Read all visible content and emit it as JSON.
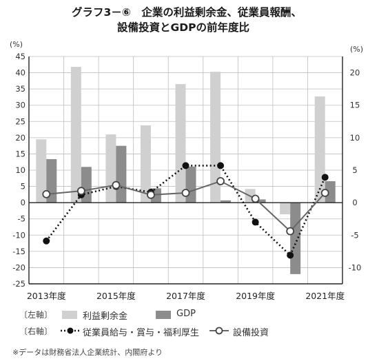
{
  "chart_data": {
    "type": "bar",
    "title": "グラフ3－⑥　企業の利益剰余金、従業員報酬、設備投資とGDPの前年度比",
    "title_line1": "グラフ3－⑥　企業の利益剰余金、従業員報酬、",
    "title_line2": "設備投資とGDPの前年度比",
    "left_axis_unit": "(%)",
    "right_axis_unit": "(%)",
    "left_ylim": [
      -25,
      45
    ],
    "right_ylim": [
      -12.5,
      22.5
    ],
    "left_ticks": [
      45,
      40,
      35,
      30,
      25,
      20,
      15,
      10,
      5,
      0,
      -5,
      -10,
      -15,
      -20,
      -25
    ],
    "right_ticks": [
      20,
      15,
      10,
      5,
      0,
      -5,
      -10
    ],
    "x_years": [
      2013,
      2014,
      2015,
      2016,
      2017,
      2018,
      2019,
      2020,
      2021
    ],
    "x_tick_labels": [
      "2013年度",
      "2015年度",
      "2017年度",
      "2019年度",
      "2021年度"
    ],
    "series": [
      {
        "name": "利益剰余金",
        "axis": "left",
        "kind": "bar",
        "color": "#d0d0d0",
        "values": [
          19.5,
          41.8,
          21.0,
          23.8,
          36.5,
          40.3,
          4.2,
          -3.6,
          32.7
        ]
      },
      {
        "name": "GDP",
        "axis": "left",
        "kind": "bar",
        "color": "#8c8c8c",
        "values": [
          13.4,
          11.0,
          17.5,
          4.4,
          11.1,
          0.7,
          1.0,
          -22.0,
          6.6
        ]
      },
      {
        "name": "従業員給与・賞与・福利厚生",
        "axis": "right",
        "kind": "line-dotted",
        "color": "#111111",
        "values": [
          -5.9,
          1.2,
          2.5,
          1.6,
          5.7,
          5.7,
          -3.0,
          -8.1,
          3.9
        ]
      },
      {
        "name": "設備投資",
        "axis": "right",
        "kind": "line",
        "color": "#666666",
        "values": [
          1.3,
          1.8,
          2.7,
          1.2,
          1.5,
          3.3,
          0.6,
          -4.4,
          1.5
        ]
      }
    ]
  },
  "legend": {
    "left_axis_tag": "〔左軸〕",
    "right_axis_tag": "〔右軸〕",
    "items": [
      "利益剰余金",
      "GDP",
      "従業員給与・賞与・福利厚生",
      "設備投資"
    ]
  },
  "note": "※データは財務省法人企業統計、内閣府より"
}
